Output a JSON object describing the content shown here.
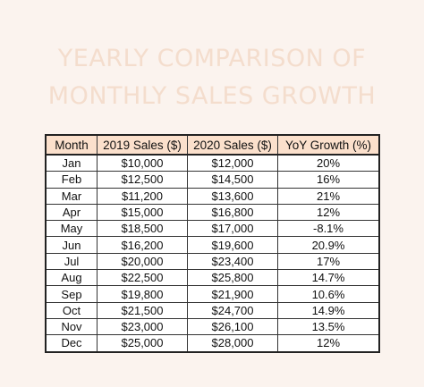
{
  "title": {
    "line1": "YEARLY COMPARISON OF",
    "line2": "MONTHLY SALES GROWTH"
  },
  "table": {
    "headers": [
      "Month",
      "2019 Sales ($)",
      "2020 Sales ($)",
      "YoY Growth (%)"
    ],
    "rows": [
      [
        "Jan",
        "$10,000",
        "$12,000",
        "20%"
      ],
      [
        "Feb",
        "$12,500",
        "$14,500",
        "16%"
      ],
      [
        "Mar",
        "$11,200",
        "$13,600",
        "21%"
      ],
      [
        "Apr",
        "$15,000",
        "$16,800",
        "12%"
      ],
      [
        "May",
        "$18,500",
        "$17,000",
        "-8.1%"
      ],
      [
        "Jun",
        "$16,200",
        "$19,600",
        "20.9%"
      ],
      [
        "Jul",
        "$20,000",
        "$23,400",
        "17%"
      ],
      [
        "Aug",
        "$22,500",
        "$25,800",
        "14.7%"
      ],
      [
        "Sep",
        "$19,800",
        "$21,900",
        "10.6%"
      ],
      [
        "Oct",
        "$21,500",
        "$24,700",
        "14.9%"
      ],
      [
        "Nov",
        "$23,000",
        "$26,100",
        "13.5%"
      ],
      [
        "Dec",
        "$25,000",
        "$28,000",
        "12%"
      ]
    ]
  },
  "colors": {
    "background": "#fbf3ee",
    "title": "#f4ddcd",
    "header_fill": "#fbe0cc",
    "border": "#333333"
  }
}
